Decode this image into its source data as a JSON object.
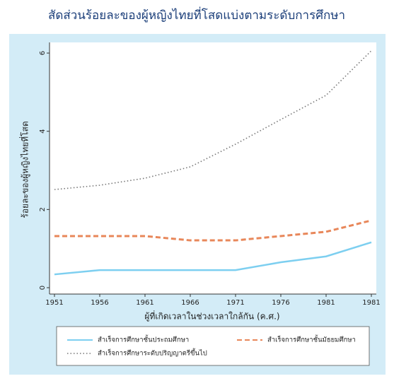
{
  "chart_data": {
    "type": "line",
    "title": "สัดส่วนร้อยละของผู้หญิงไทยที่โสดแบ่งตามระดับการศึกษา",
    "x_label": "ผู้ที่เกิดเวลาในช่วงเวลาใกล้กัน (ค.ศ.)",
    "y_label": "ร้อยละของผู้หญิงไทยที่โสด",
    "categories": [
      "1951",
      "1956",
      "1961",
      "1966",
      "1971",
      "1976",
      "1981",
      "1981"
    ],
    "ylim": [
      0,
      6.2
    ],
    "yticks": [
      0,
      2,
      4,
      6
    ],
    "series": [
      {
        "name": "สำเร็จการศึกษาชั้นประถมศึกษา",
        "color": "#7dcff0",
        "style": "solid",
        "values": [
          0.34,
          0.45,
          0.45,
          0.45,
          0.45,
          0.65,
          0.8,
          1.16
        ]
      },
      {
        "name": "สำเร็จการศึกษาชั้นมัธยมศึกษา",
        "color": "#e8875a",
        "style": "dashed",
        "values": [
          1.32,
          1.32,
          1.32,
          1.21,
          1.21,
          1.32,
          1.43,
          1.72
        ]
      },
      {
        "name": "สำเร็จการศึกษาระดับปริญญาตรีขึ้นไป",
        "color": "#777777",
        "style": "dotted",
        "values": [
          2.51,
          2.62,
          2.8,
          3.09,
          3.67,
          4.3,
          4.92,
          6.06
        ]
      }
    ]
  }
}
